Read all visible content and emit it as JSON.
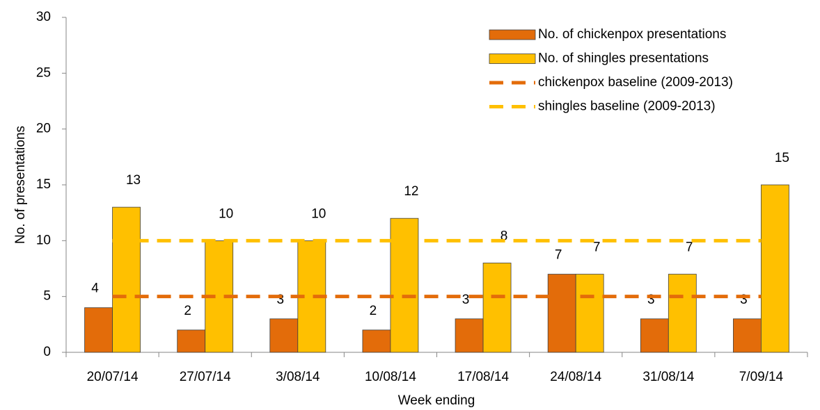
{
  "chart_data": {
    "type": "bar",
    "x_label": "Week ending",
    "y_label": "No. of presentations",
    "categories": [
      "20/07/14",
      "27/07/14",
      "3/08/14",
      "10/08/14",
      "17/08/14",
      "24/08/14",
      "31/08/14",
      "7/09/14"
    ],
    "series": [
      {
        "name": "No. of chickenpox presentations",
        "type": "bar",
        "color": "#e36c0a",
        "values": [
          4,
          2,
          3,
          2,
          3,
          7,
          3,
          3
        ]
      },
      {
        "name": "No. of shingles presentations",
        "type": "bar",
        "color": "#ffc000",
        "values": [
          13,
          10,
          10,
          12,
          8,
          7,
          7,
          15
        ]
      },
      {
        "name": "chickenpox baseline (2009-2013)",
        "type": "line",
        "dashed": true,
        "color": "#e36c0a",
        "values": [
          5,
          5,
          5,
          5,
          5,
          5,
          5,
          5
        ]
      },
      {
        "name": "shingles baseline (2009-2013)",
        "type": "line",
        "dashed": true,
        "color": "#ffc000",
        "values": [
          10,
          10,
          10,
          10,
          10,
          10,
          10,
          10
        ]
      }
    ],
    "ylim": [
      0,
      30
    ],
    "yticks": [
      0,
      5,
      10,
      15,
      20,
      25,
      30
    ],
    "legend": "upper right"
  }
}
